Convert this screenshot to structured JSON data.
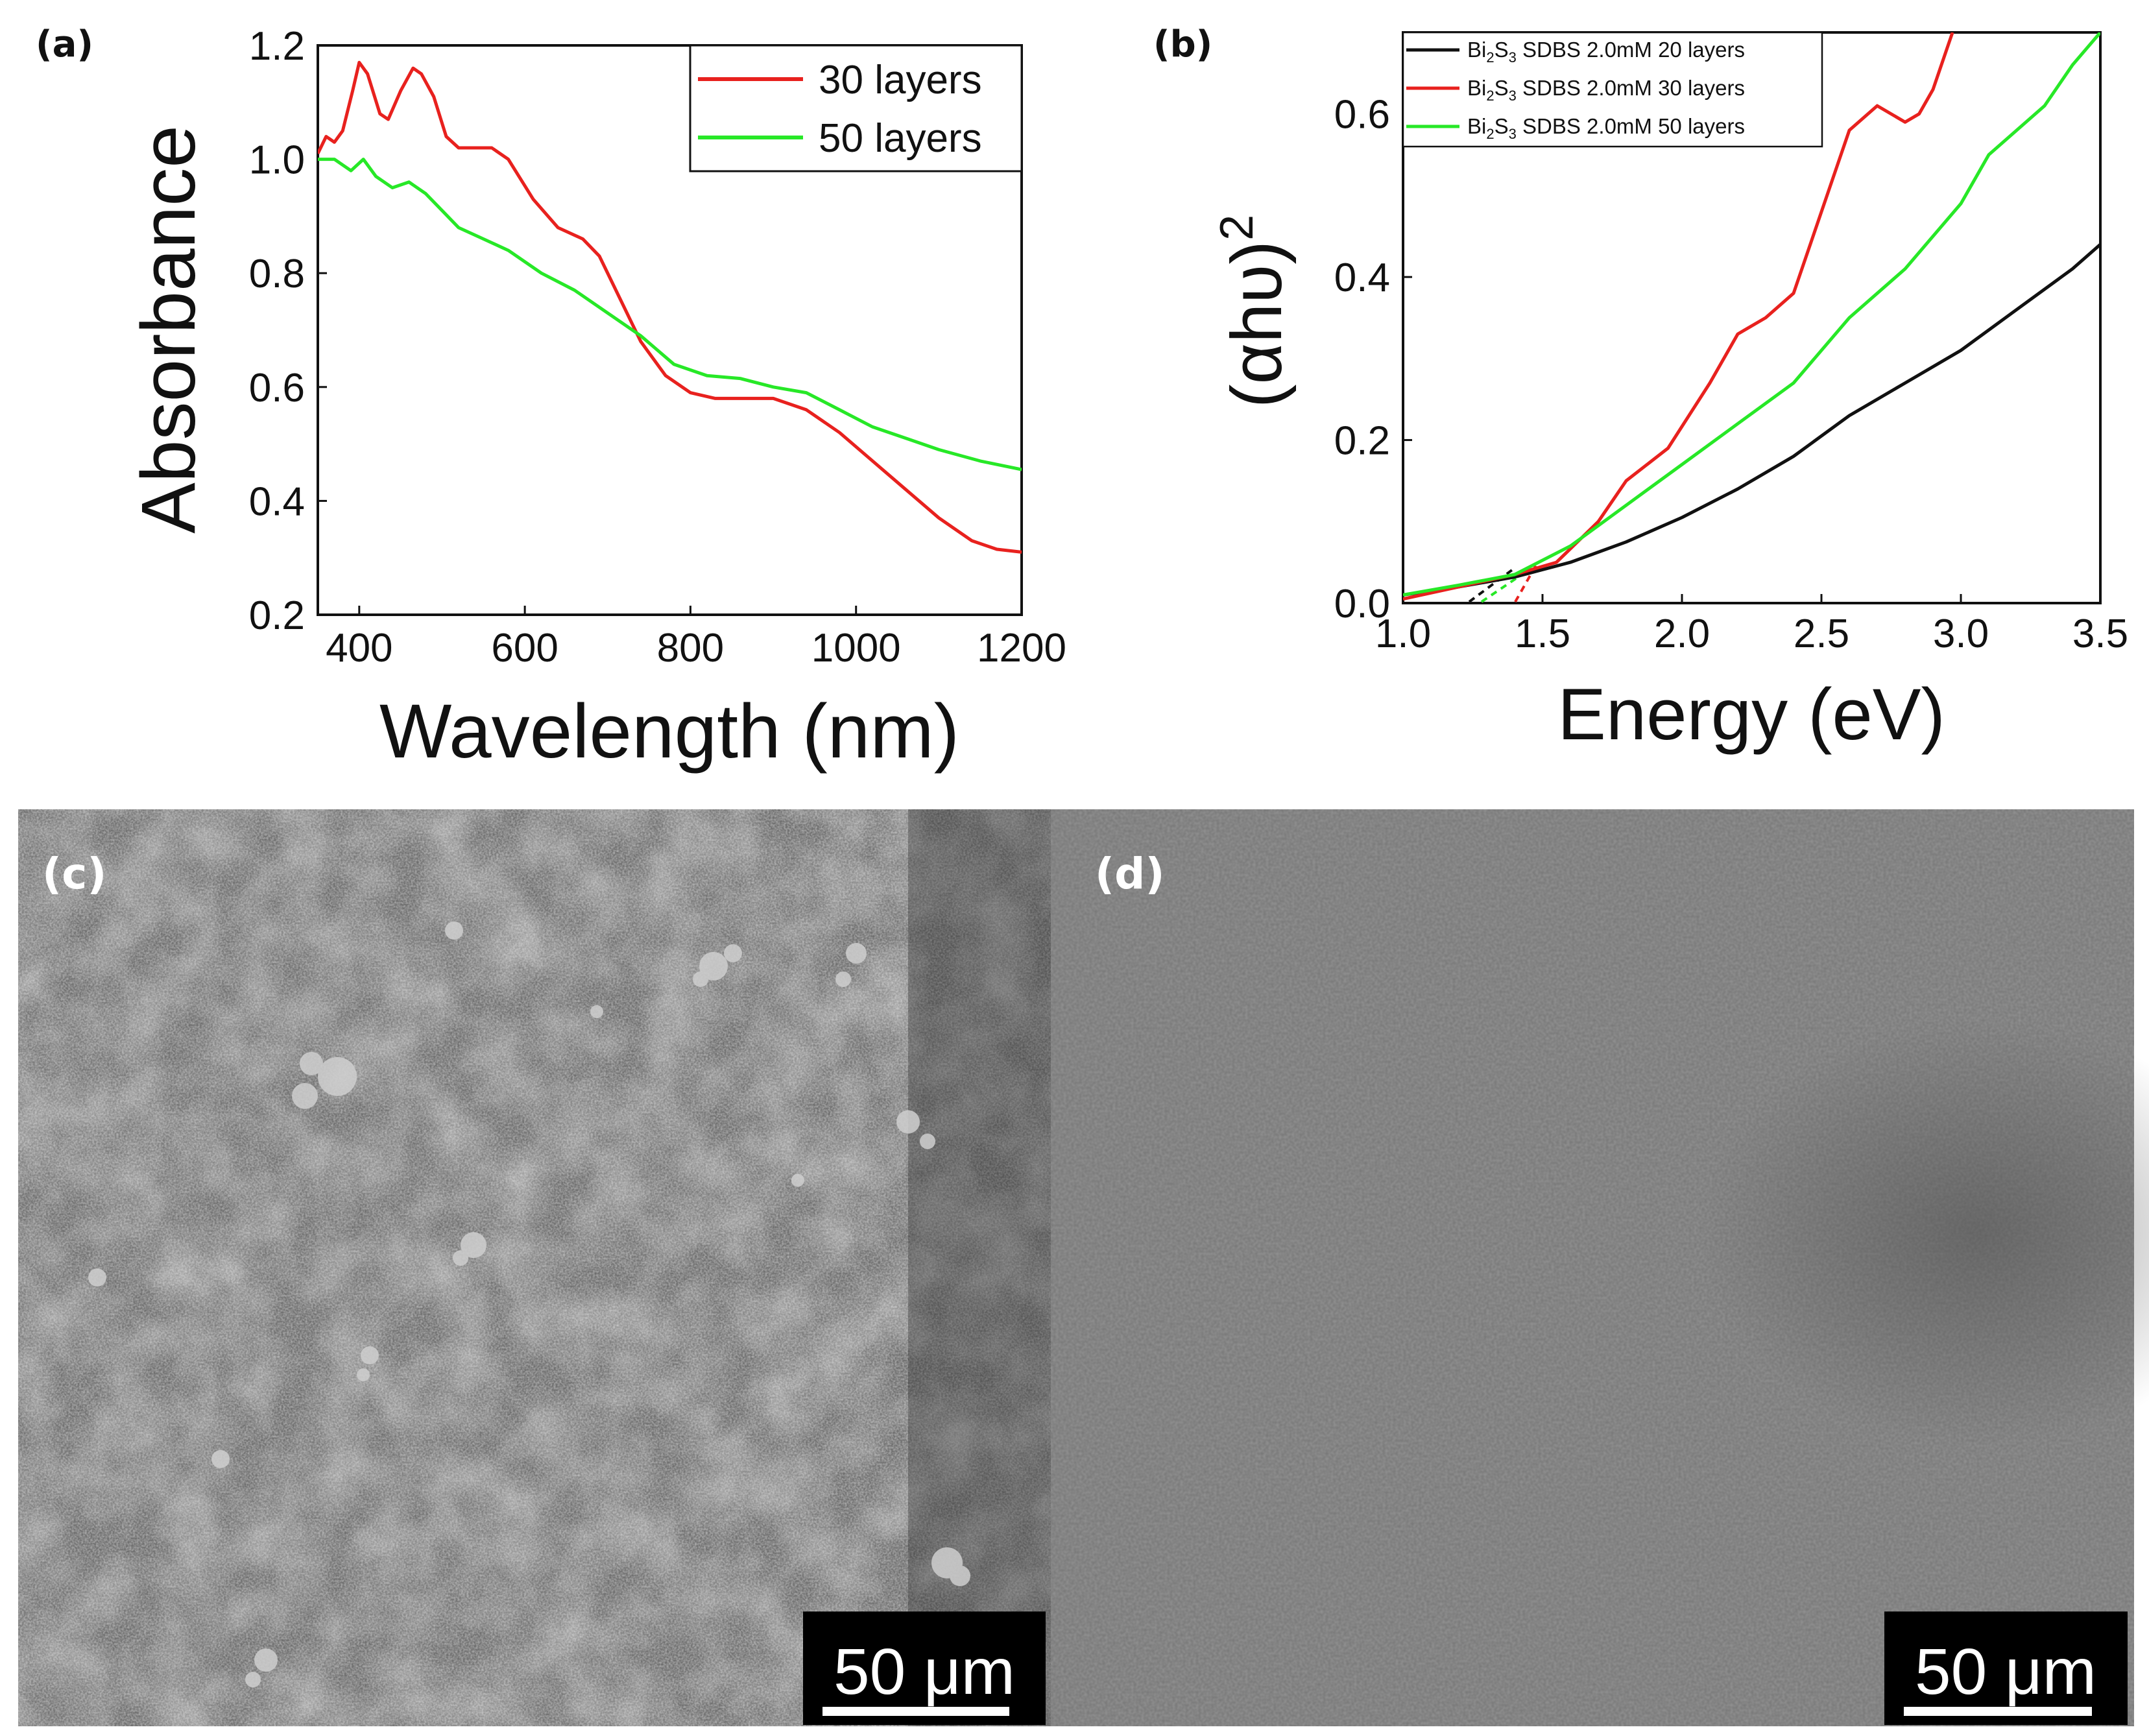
{
  "panels": {
    "a": {
      "label": "(a)",
      "chart_data": {
        "type": "line",
        "xlabel": "Wavelength (nm)",
        "ylabel": "Absorbance",
        "xlim": [
          350,
          1200
        ],
        "ylim": [
          0.2,
          1.2
        ],
        "xticks": [
          "400",
          "600",
          "800",
          "1000",
          "1200"
        ],
        "yticks": [
          "0.2",
          "0.4",
          "0.6",
          "0.8",
          "1.0",
          "1.2"
        ],
        "legend": "top-right",
        "series": [
          {
            "name": "30 layers",
            "color": "#e8211e",
            "x": [
              350,
              360,
              370,
              380,
              392,
              400,
              410,
              425,
              435,
              450,
              465,
              475,
              490,
              505,
              520,
              545,
              560,
              580,
              610,
              640,
              670,
              690,
              710,
              740,
              770,
              800,
              830,
              860,
              900,
              940,
              980,
              1020,
              1060,
              1100,
              1140,
              1170,
              1200
            ],
            "y": [
              1.01,
              1.04,
              1.03,
              1.05,
              1.12,
              1.17,
              1.15,
              1.08,
              1.07,
              1.12,
              1.16,
              1.15,
              1.11,
              1.04,
              1.02,
              1.02,
              1.02,
              1.0,
              0.93,
              0.88,
              0.86,
              0.83,
              0.77,
              0.68,
              0.62,
              0.59,
              0.58,
              0.58,
              0.58,
              0.56,
              0.52,
              0.47,
              0.42,
              0.37,
              0.33,
              0.315,
              0.31
            ]
          },
          {
            "name": "50 layers",
            "color": "#27e827",
            "x": [
              350,
              370,
              390,
              405,
              420,
              440,
              460,
              480,
              500,
              520,
              550,
              580,
              620,
              660,
              700,
              740,
              780,
              820,
              860,
              900,
              940,
              980,
              1020,
              1060,
              1100,
              1150,
              1200
            ],
            "y": [
              1.0,
              1.0,
              0.98,
              1.0,
              0.97,
              0.95,
              0.96,
              0.94,
              0.91,
              0.88,
              0.86,
              0.84,
              0.8,
              0.77,
              0.73,
              0.69,
              0.64,
              0.62,
              0.615,
              0.6,
              0.59,
              0.56,
              0.53,
              0.51,
              0.49,
              0.47,
              0.455
            ]
          }
        ]
      }
    },
    "b": {
      "label": "(b)",
      "chart_data": {
        "type": "line",
        "xlabel": "Energy (eV)",
        "ylabel": "(αhυ)2",
        "ylabel_base": "(αhυ)",
        "ylabel_exp": "2",
        "xlim": [
          1.0,
          3.5
        ],
        "ylim": [
          0.0,
          0.7
        ],
        "xticks": [
          "1.0",
          "1.5",
          "2.0",
          "2.5",
          "3.0",
          "3.5"
        ],
        "yticks": [
          "0.0",
          "0.2",
          "0.4",
          "0.6"
        ],
        "legend": "top-left",
        "series": [
          {
            "name": "Bi2S3 SDBS 2.0mM 20 layers",
            "name_main": "Bi",
            "name_sub1": "2",
            "name_mid": "S",
            "name_sub2": "3",
            "name_rest": " SDBS 2.0mM 20 layers",
            "color": "#111111",
            "x": [
              1.0,
              1.2,
              1.4,
              1.6,
              1.8,
              2.0,
              2.2,
              2.4,
              2.6,
              2.8,
              3.0,
              3.2,
              3.4,
              3.5
            ],
            "y": [
              0.01,
              0.02,
              0.032,
              0.05,
              0.075,
              0.105,
              0.14,
              0.18,
              0.23,
              0.27,
              0.31,
              0.36,
              0.41,
              0.44
            ]
          },
          {
            "name": "Bi2S3 SDBS 2.0mM 30 layers",
            "name_main": "Bi",
            "name_sub1": "2",
            "name_mid": "S",
            "name_sub2": "3",
            "name_rest": " SDBS 2.0mM 30 layers",
            "color": "#e8211e",
            "x": [
              1.0,
              1.2,
              1.4,
              1.55,
              1.7,
              1.8,
              1.95,
              2.1,
              2.2,
              2.3,
              2.4,
              2.5,
              2.6,
              2.7,
              2.8,
              2.85,
              2.9,
              2.95,
              2.97
            ],
            "y": [
              0.005,
              0.02,
              0.035,
              0.05,
              0.1,
              0.15,
              0.19,
              0.27,
              0.33,
              0.35,
              0.38,
              0.48,
              0.58,
              0.61,
              0.59,
              0.6,
              0.63,
              0.68,
              0.7
            ]
          },
          {
            "name": "Bi2S3 SDBS 2.0mM 50 layers",
            "name_main": "Bi",
            "name_sub1": "2",
            "name_mid": "S",
            "name_sub2": "3",
            "name_rest": " SDBS 2.0mM 50 layers",
            "color": "#27e827",
            "x": [
              1.0,
              1.2,
              1.4,
              1.6,
              1.8,
              2.0,
              2.2,
              2.4,
              2.6,
              2.8,
              3.0,
              3.1,
              3.2,
              3.3,
              3.4,
              3.5
            ],
            "y": [
              0.01,
              0.022,
              0.035,
              0.07,
              0.12,
              0.17,
              0.22,
              0.27,
              0.35,
              0.41,
              0.49,
              0.55,
              0.58,
              0.61,
              0.66,
              0.7
            ]
          }
        ]
      }
    },
    "c": {
      "label": "(c)",
      "scale_bar": "50 μm"
    },
    "d": {
      "label": "(d)",
      "scale_bar": "50 μm"
    }
  }
}
